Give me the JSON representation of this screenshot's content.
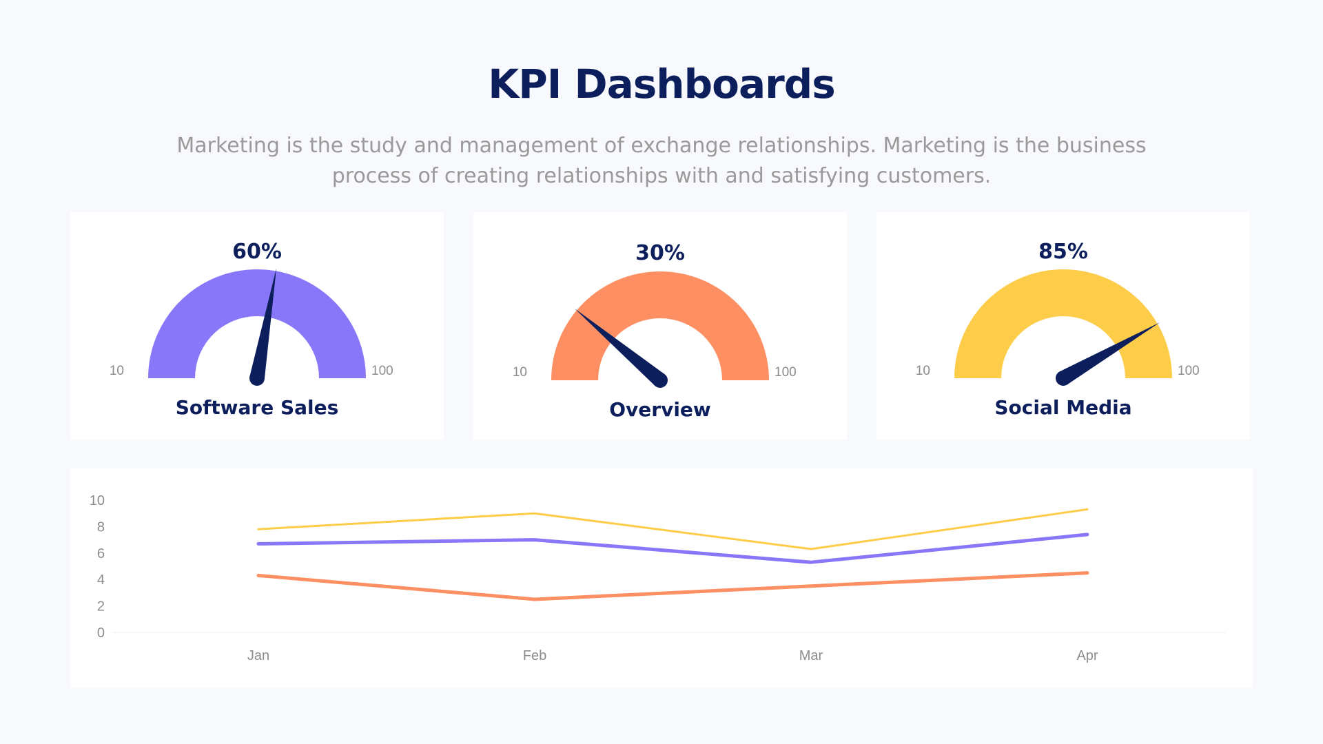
{
  "title": "KPI Dashboards",
  "subtitle": "Marketing is the study and management of exchange relationships. Marketing is the business process of creating relationships with and satisfying customers.",
  "colors": {
    "title": "#0c1f5c",
    "needle": "#0c1f5c",
    "purple": "#8877f8",
    "orange": "#fd8f63",
    "yellow": "#fdcc48"
  },
  "chart_data": [
    {
      "type": "gauge",
      "label": "Software Sales",
      "value_label": "60%",
      "value": 60,
      "min": 10,
      "max": 100,
      "min_label": "10",
      "max_label": "100",
      "color": "#8877f8"
    },
    {
      "type": "gauge",
      "label": "Overview",
      "value_label": "30%",
      "value": 30,
      "min": 10,
      "max": 100,
      "min_label": "10",
      "max_label": "100",
      "color": "#fd8f63"
    },
    {
      "type": "gauge",
      "label": "Social Media",
      "value_label": "85%",
      "value": 85,
      "min": 10,
      "max": 100,
      "min_label": "10",
      "max_label": "100",
      "color": "#fdcc48"
    },
    {
      "type": "line",
      "categories": [
        "Jan",
        "Feb",
        "Mar",
        "Apr"
      ],
      "ylim": [
        0,
        10
      ],
      "yticks": [
        "0",
        "2",
        "4",
        "6",
        "8",
        "10"
      ],
      "grid": false,
      "series": [
        {
          "color": "#fdcc48",
          "values": [
            7.8,
            9.0,
            6.3,
            9.3
          ]
        },
        {
          "color": "#8877f8",
          "values": [
            6.7,
            7.0,
            5.3,
            7.4
          ]
        },
        {
          "color": "#fd8f63",
          "values": [
            4.3,
            2.5,
            3.5,
            4.5
          ]
        }
      ]
    }
  ]
}
